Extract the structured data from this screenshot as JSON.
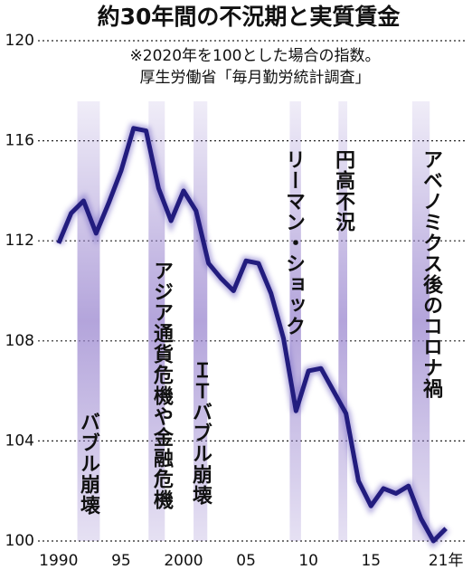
{
  "chart_data": {
    "type": "line",
    "title": "約30年間の不況期と実質賃金",
    "notes": [
      "※2020年を100とした場合の指数。",
      "厚生労働省「毎月勤労統計調査」"
    ],
    "x": [
      1990,
      1991,
      1992,
      1993,
      1994,
      1995,
      1996,
      1997,
      1998,
      1999,
      2000,
      2001,
      2002,
      2003,
      2004,
      2005,
      2006,
      2007,
      2008,
      2009,
      2010,
      2011,
      2012,
      2013,
      2014,
      2015,
      2016,
      2017,
      2018,
      2019,
      2020,
      2021
    ],
    "series": [
      {
        "color": "#221c7e",
        "values": [
          111.9,
          113.1,
          113.6,
          112.3,
          113.5,
          114.8,
          116.5,
          116.4,
          114.1,
          112.8,
          114.0,
          113.2,
          111.1,
          110.5,
          110.0,
          111.2,
          111.1,
          109.9,
          108.1,
          105.2,
          106.8,
          106.9,
          106.0,
          105.1,
          102.4,
          101.4,
          102.1,
          101.9,
          102.2,
          100.9,
          100.0,
          100.5
        ]
      }
    ],
    "xlim": [
      1989,
      2022
    ],
    "xticks": [
      1990,
      {
        "value": 1995,
        "label": "95"
      },
      2000,
      {
        "value": 2005,
        "label": "05"
      },
      {
        "value": 2010,
        "label": "10"
      },
      {
        "value": 2015,
        "label": "15"
      },
      {
        "value": 2021,
        "label": "21年"
      }
    ],
    "ylim": [
      100,
      120
    ],
    "yticks": [
      100,
      104,
      108,
      112,
      116,
      120
    ],
    "grid": true,
    "shaded_periods": [
      {
        "label": "バブル崩壊",
        "start": 1991.5,
        "end": 1993.3
      },
      {
        "label": "アジア通貨危機や金融危機",
        "start": 1997.2,
        "end": 1998.5
      },
      {
        "label": "ＩＴバブル崩壊",
        "start": 2000.8,
        "end": 2001.9
      },
      {
        "label": "リーマン・ショック",
        "start": 2008.5,
        "end": 2009.4
      },
      {
        "label": "円高不況",
        "start": 2012.4,
        "end": 2013.1
      },
      {
        "label": "アベノミクス後のコロナ禍",
        "start": 2018.3,
        "end": 2019.7
      }
    ],
    "band_color": "#9a86cf"
  }
}
